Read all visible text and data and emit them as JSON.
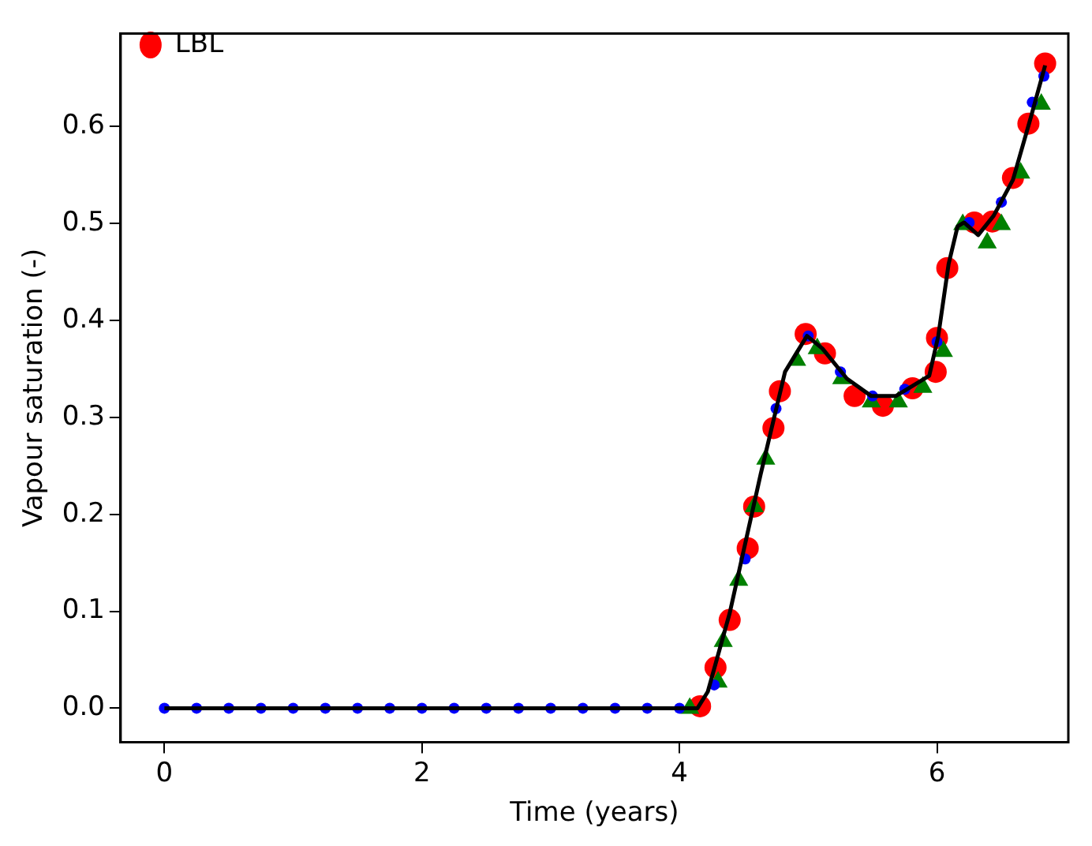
{
  "chart_data": {
    "type": "scatter",
    "xlabel": "Time (years)",
    "ylabel": "Vapour saturation (-)",
    "xlim": [
      -0.34,
      7.02
    ],
    "ylim": [
      -0.035,
      0.696
    ],
    "xticks": [
      0,
      2,
      4,
      6
    ],
    "yticks": [
      {
        "value": 0,
        "label": "0.0"
      },
      {
        "value": 0.1,
        "label": "0.1"
      },
      {
        "value": 0.2,
        "label": "0.2"
      },
      {
        "value": 0.3,
        "label": "0.3"
      },
      {
        "value": 0.4,
        "label": "0.4"
      },
      {
        "value": 0.5,
        "label": "0.5"
      },
      {
        "value": 0.6,
        "label": "0.6"
      }
    ],
    "grid": false,
    "legend": "top left",
    "series": [
      {
        "name": "LBL",
        "type": "scatter",
        "marker": "circle",
        "color": "#ff0000",
        "x": [
          4.16,
          4.28,
          4.39,
          4.53,
          4.58,
          4.73,
          4.78,
          4.98,
          5.13,
          5.36,
          5.58,
          5.81,
          5.99,
          6.0,
          6.08,
          6.29,
          6.43,
          6.59,
          6.71,
          6.84
        ],
        "values": [
          0.002,
          0.042,
          0.091,
          0.165,
          0.208,
          0.289,
          0.327,
          0.386,
          0.366,
          0.322,
          0.312,
          0.33,
          0.347,
          0.382,
          0.454,
          0.501,
          0.502,
          0.547,
          0.603,
          0.665
        ]
      },
      {
        "type": "scatter",
        "marker": "triangle",
        "color": "#008000",
        "x": [
          4.08,
          4.3,
          4.34,
          4.46,
          4.58,
          4.67,
          4.91,
          5.07,
          5.26,
          5.49,
          5.7,
          5.89,
          6.05,
          6.2,
          6.39,
          6.5,
          6.65,
          6.81
        ],
        "values": [
          0.0,
          0.027,
          0.069,
          0.132,
          0.208,
          0.257,
          0.359,
          0.371,
          0.34,
          0.316,
          0.316,
          0.331,
          0.368,
          0.499,
          0.48,
          0.499,
          0.552,
          0.623
        ]
      },
      {
        "type": "scatter",
        "marker": "circle",
        "color": "#0000ff",
        "x": [
          0,
          0.25,
          0.5,
          0.75,
          1,
          1.25,
          1.5,
          1.75,
          2,
          2.25,
          2.5,
          2.75,
          3,
          3.25,
          3.5,
          3.75,
          4,
          4.27,
          4.51,
          4.75,
          5.0,
          5.25,
          5.5,
          5.75,
          6.0,
          6.25,
          6.5,
          6.74,
          6.83
        ],
        "values": [
          0,
          0,
          0,
          0,
          0,
          0,
          0,
          0,
          0,
          0,
          0,
          0,
          0,
          0,
          0,
          0,
          0,
          0.024,
          0.154,
          0.309,
          0.384,
          0.347,
          0.322,
          0.329,
          0.378,
          0.501,
          0.522,
          0.625,
          0.652
        ]
      },
      {
        "type": "line",
        "marker": "none",
        "line_style": "solid",
        "color": "#000000",
        "x": [
          0,
          4.14,
          4.22,
          4.39,
          4.63,
          4.82,
          4.99,
          5.11,
          5.3,
          5.49,
          5.68,
          5.94,
          6.01,
          6.09,
          6.16,
          6.21,
          6.32,
          6.44,
          6.59,
          6.73,
          6.84
        ],
        "values": [
          0,
          0,
          0.017,
          0.098,
          0.241,
          0.347,
          0.384,
          0.371,
          0.34,
          0.322,
          0.322,
          0.343,
          0.384,
          0.458,
          0.497,
          0.501,
          0.488,
          0.508,
          0.545,
          0.61,
          0.663
        ]
      }
    ]
  }
}
